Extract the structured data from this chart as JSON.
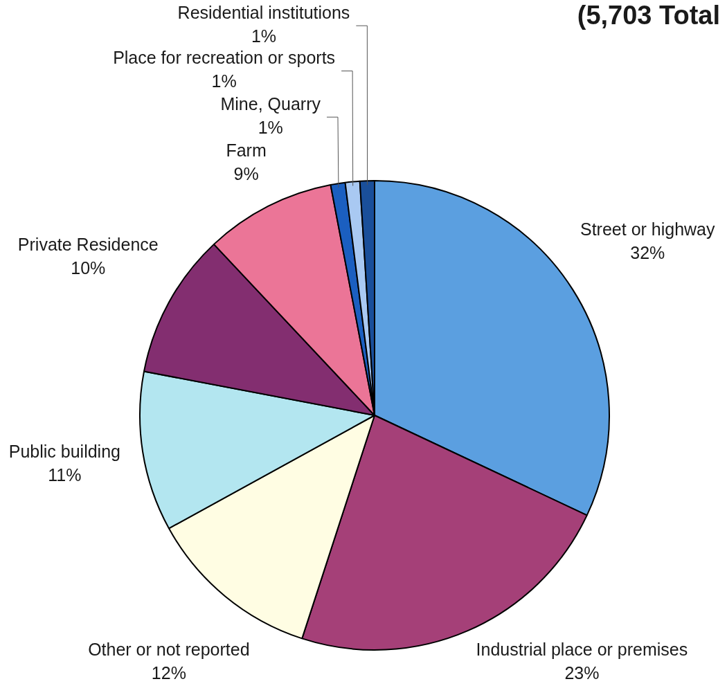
{
  "chart_data": {
    "type": "pie",
    "title": "(5,703 Total",
    "categories": [
      "Street or highway",
      "Industrial place or premises",
      "Other or not reported",
      "Public building",
      "Private Residence",
      "Farm",
      "Mine, Quarry",
      "Place for recreation or sports",
      "Residential institutions"
    ],
    "values": [
      32,
      23,
      12,
      11,
      10,
      9,
      1,
      1,
      1
    ],
    "value_labels": [
      "32%",
      "23%",
      "12%",
      "11%",
      "10%",
      "9%",
      "1%",
      "1%",
      "1%"
    ],
    "colors": [
      "#5b9fe0",
      "#a54078",
      "#fffde3",
      "#b3e6f0",
      "#832e70",
      "#eb7597",
      "#1b5fc0",
      "#a9c9f2",
      "#1a4f9a"
    ]
  }
}
